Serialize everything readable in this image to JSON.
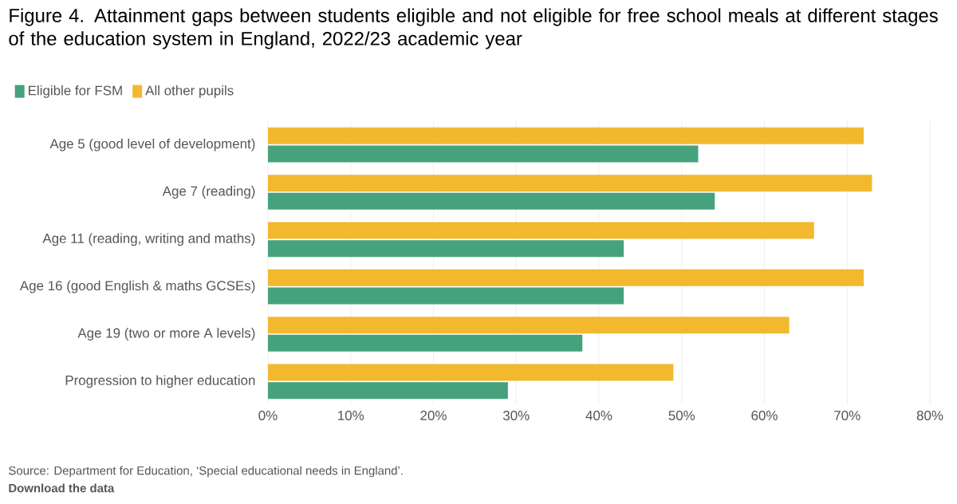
{
  "chart_data": {
    "type": "bar",
    "orientation": "horizontal",
    "title": "Figure 4. Attainment gaps between students eligible and not eligible for free school meals at different stages of the education system in England, 2022/23 academic year",
    "categories": [
      "Age 5 (good level of development)",
      "Age 7 (reading)",
      "Age 11 (reading, writing and maths)",
      "Age 16 (good English & maths GCSEs)",
      "Age 19 (two or more A levels)",
      "Progression to higher education"
    ],
    "series": [
      {
        "name": "Eligible for FSM",
        "color": "#45a27d",
        "values": [
          52,
          54,
          43,
          43,
          38,
          29
        ]
      },
      {
        "name": "All other pupils",
        "color": "#f2b92f",
        "values": [
          72,
          73,
          66,
          72,
          63,
          49
        ]
      }
    ],
    "xlim": [
      0,
      80
    ],
    "xticks": [
      {
        "value": 0,
        "label": "0%"
      },
      {
        "value": 10,
        "label": "10%"
      },
      {
        "value": 20,
        "label": "20%"
      },
      {
        "value": 30,
        "label": "30%"
      },
      {
        "value": 40,
        "label": "40%"
      },
      {
        "value": 50,
        "label": "50%"
      },
      {
        "value": 60,
        "label": "60%"
      },
      {
        "value": 70,
        "label": "70%"
      },
      {
        "value": 80,
        "label": "80%"
      }
    ],
    "grid": "x",
    "legend": "top left",
    "annotations": [
      "Source: Department for Education, ‘Special educational needs in England’.",
      "**Download the data**"
    ]
  }
}
